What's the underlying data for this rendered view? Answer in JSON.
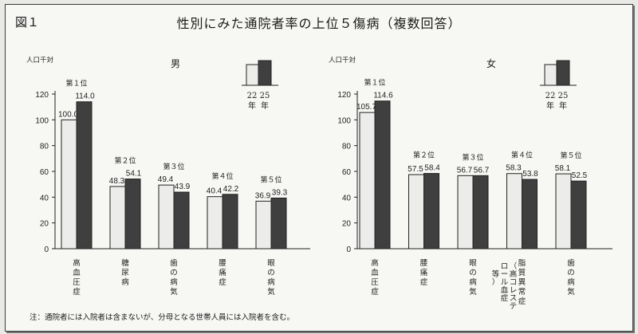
{
  "figure": {
    "label": "図１",
    "title": "性別にみた通院者率の上位５傷病（複数回答）",
    "note": "注：通院者には入院者は含まないが、分母となる世帯人員には入院者を含む。"
  },
  "colors": {
    "bar_2022": "#ececea",
    "bar_2025": "#3f3f3f",
    "ink": "#222222"
  },
  "chart_data": [
    {
      "type": "bar",
      "title": "男",
      "ylabel": "人口千対",
      "ylim": [
        0,
        120
      ],
      "yticks": [
        0,
        20,
        40,
        60,
        80,
        100,
        120
      ],
      "legend": {
        "entries": [
          "22年",
          "25年"
        ],
        "entries_vertical": [
          "22\n年",
          "25\n年"
        ],
        "placement": "top-right"
      },
      "categories": [
        "高血圧症",
        "糖尿病",
        "歯の病気",
        "腰痛症",
        "眼の病気"
      ],
      "category_labels_vertical": [
        "高\n血\n圧\n症",
        "糖\n尿\n病",
        "歯\nの\n病\n気",
        "腰\n痛\n症",
        "眼\nの\n病\n気"
      ],
      "ranks": [
        "第１位",
        "第２位",
        "第３位",
        "第４位",
        "第５位"
      ],
      "series": [
        {
          "name": "22年",
          "values": [
            100.0,
            48.3,
            49.4,
            40.4,
            36.9
          ],
          "labels": [
            "100.0",
            "48.3",
            "49.4",
            "40.4",
            "36.9"
          ]
        },
        {
          "name": "25年",
          "values": [
            114.0,
            54.1,
            43.9,
            42.2,
            39.3
          ],
          "labels": [
            "114.0",
            "54.1",
            "43.9",
            "42.2",
            "39.3"
          ]
        }
      ]
    },
    {
      "type": "bar",
      "title": "女",
      "ylabel": "人口千対",
      "ylim": [
        0,
        120
      ],
      "yticks": [
        0,
        20,
        40,
        60,
        80,
        100,
        120
      ],
      "legend": {
        "entries": [
          "22年",
          "25年"
        ],
        "entries_vertical": [
          "22\n年",
          "25\n年"
        ],
        "placement": "top-right"
      },
      "categories": [
        "高血圧症",
        "腰痛症",
        "眼の病気",
        "脂質異常症（高コレステロール血症等）",
        "歯の病気"
      ],
      "category_labels_vertical": [
        "高\n血\n圧\n症",
        "腰\n痛\n症",
        "眼\nの\n病\n気",
        "脂\n質\n異\n常\n症",
        "歯\nの\n病\n気"
      ],
      "category_labels_vertical_sub": [
        "",
        "",
        "",
        "（\n高\nコ\nレ\nス\nテ",
        ""
      ],
      "category_labels_vertical_sub2": [
        "",
        "",
        "",
        "ロ\nー\nル\n血\n症",
        ""
      ],
      "category_labels_vertical_sub3": [
        "",
        "",
        "",
        "等\n）",
        ""
      ],
      "ranks": [
        "第１位",
        "第２位",
        "第３位",
        "第４位",
        "第５位"
      ],
      "series": [
        {
          "name": "22年",
          "values": [
            105.7,
            57.5,
            56.7,
            58.3,
            58.1
          ],
          "labels": [
            "105.7",
            "57.5",
            "56.7",
            "58.3",
            "58.1"
          ]
        },
        {
          "name": "25年",
          "values": [
            114.6,
            58.4,
            56.7,
            53.8,
            52.5
          ],
          "labels": [
            "114.6",
            "58.4",
            "56.7",
            "53.8",
            "52.5"
          ]
        }
      ]
    }
  ]
}
